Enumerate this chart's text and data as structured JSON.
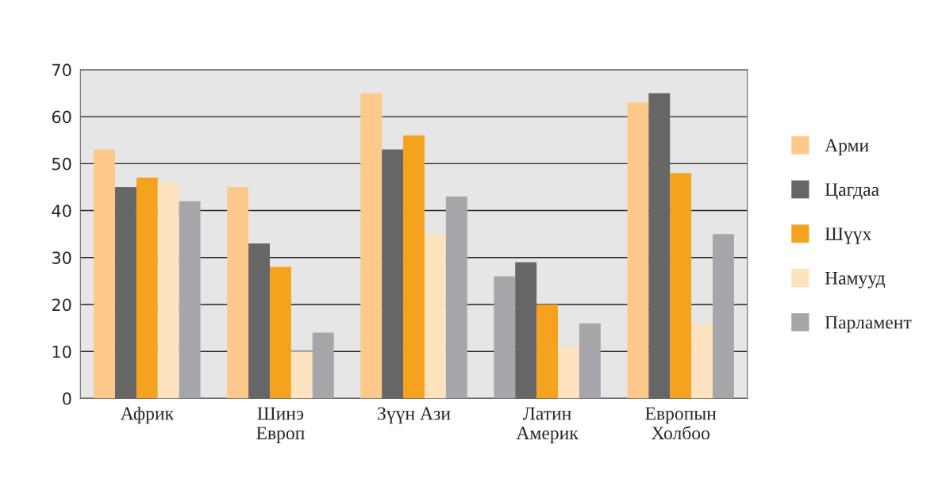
{
  "chart_data": {
    "type": "bar",
    "categories": [
      "Африк",
      "Шинэ\nЕвроп",
      "Зүүн Ази",
      "Латин\nАмерик",
      "Европын\nХолбоо"
    ],
    "series": [
      {
        "name": "Арми",
        "color": "#fdc98a",
        "colors": [
          "#fdc98a",
          "#fdc98a",
          "#fdc98a",
          "#a6a6aa",
          "#fdc98a"
        ],
        "values": [
          53,
          45,
          65,
          26,
          63
        ]
      },
      {
        "name": "Цагдаа",
        "color": "#666666",
        "values": [
          45,
          33,
          53,
          29,
          65
        ]
      },
      {
        "name": "Шүүх",
        "color": "#f5a31e",
        "values": [
          47,
          28,
          56,
          20,
          48
        ]
      },
      {
        "name": "Намууд",
        "color": "#fde3c0",
        "values": [
          46,
          10,
          35,
          11,
          16
        ]
      },
      {
        "name": "Парламент",
        "color": "#a6a6aa",
        "values": [
          42,
          14,
          43,
          16,
          35
        ]
      }
    ],
    "ylim": [
      0,
      70
    ],
    "yticks": [
      0,
      10,
      20,
      30,
      40,
      50,
      60,
      70
    ],
    "grid": "y",
    "legend": "right"
  }
}
